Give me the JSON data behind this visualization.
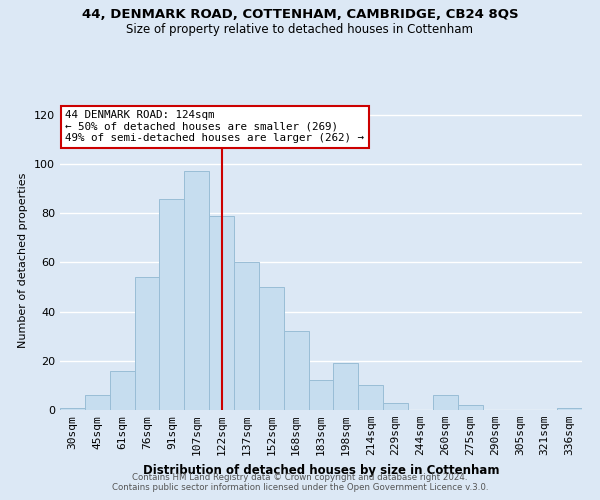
{
  "title1": "44, DENMARK ROAD, COTTENHAM, CAMBRIDGE, CB24 8QS",
  "title2": "Size of property relative to detached houses in Cottenham",
  "xlabel": "Distribution of detached houses by size in Cottenham",
  "ylabel": "Number of detached properties",
  "bar_labels": [
    "30sqm",
    "45sqm",
    "61sqm",
    "76sqm",
    "91sqm",
    "107sqm",
    "122sqm",
    "137sqm",
    "152sqm",
    "168sqm",
    "183sqm",
    "198sqm",
    "214sqm",
    "229sqm",
    "244sqm",
    "260sqm",
    "275sqm",
    "290sqm",
    "305sqm",
    "321sqm",
    "336sqm"
  ],
  "bar_values": [
    1,
    6,
    16,
    54,
    86,
    97,
    79,
    60,
    50,
    32,
    12,
    19,
    10,
    3,
    0,
    6,
    2,
    0,
    0,
    0,
    1
  ],
  "bar_color": "#c6ddef",
  "bar_edge_color": "#99bdd6",
  "vline_x_index": 6,
  "vline_color": "#cc0000",
  "annotation_line1": "44 DENMARK ROAD: 124sqm",
  "annotation_line2": "← 50% of detached houses are smaller (269)",
  "annotation_line3": "49% of semi-detached houses are larger (262) →",
  "annotation_box_edge": "#cc0000",
  "annotation_box_bg": "white",
  "ylim": [
    0,
    122
  ],
  "yticks": [
    0,
    20,
    40,
    60,
    80,
    100,
    120
  ],
  "footer1": "Contains HM Land Registry data © Crown copyright and database right 2024.",
  "footer2": "Contains public sector information licensed under the Open Government Licence v.3.0.",
  "bg_color": "#dce8f5",
  "grid_color": "white"
}
